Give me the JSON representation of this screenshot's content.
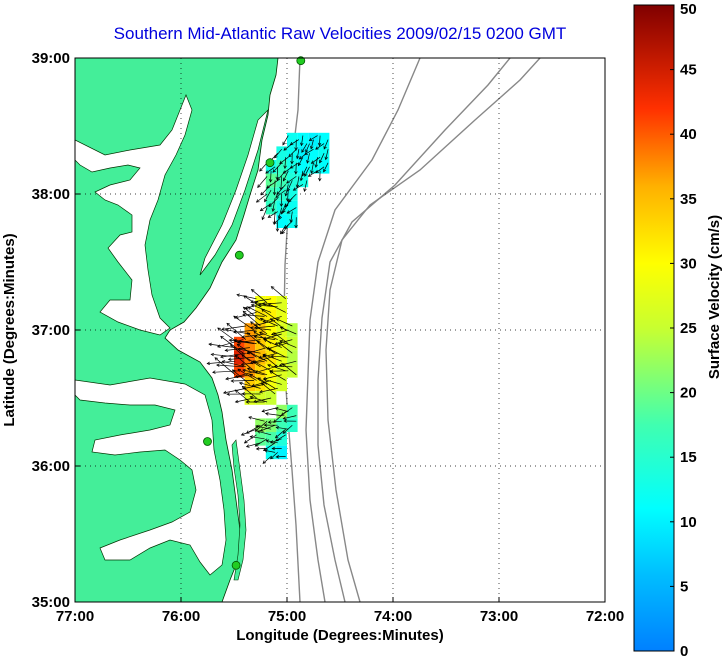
{
  "chart_data": {
    "type": "heatmap",
    "title": "Southern Mid-Atlantic Raw Velocities 2009/02/15 0200 GMT",
    "xlabel": "Longitude (Degrees:Minutes)",
    "ylabel": "Latitude (Degrees:Minutes)",
    "xlim": [
      -77,
      -72
    ],
    "ylim": [
      35,
      39
    ],
    "xticks": [
      {
        "value": -77,
        "label": "77:00"
      },
      {
        "value": -76,
        "label": "76:00"
      },
      {
        "value": -75,
        "label": "75:00"
      },
      {
        "value": -74,
        "label": "74:00"
      },
      {
        "value": -73,
        "label": "73:00"
      },
      {
        "value": -72,
        "label": "72:00"
      }
    ],
    "yticks": [
      {
        "value": 35,
        "label": "35:00"
      },
      {
        "value": 36,
        "label": "36:00"
      },
      {
        "value": 37,
        "label": "37:00"
      },
      {
        "value": 38,
        "label": "38:00"
      },
      {
        "value": 39,
        "label": "39:00"
      }
    ],
    "grid": true,
    "colorbar": {
      "label": "Surface Velocity (cm/s)",
      "range": [
        0,
        50
      ],
      "ticks": [
        "0",
        "5",
        "10",
        "15",
        "20",
        "25",
        "30",
        "35",
        "40",
        "45",
        "50"
      ],
      "colormap": "jet"
    },
    "colors": {
      "land": "#44ee99",
      "title": "#0000dd",
      "bathymetry": "#888888"
    },
    "stations": [
      {
        "lon": -74.87,
        "lat": 38.98
      },
      {
        "lon": -75.16,
        "lat": 38.23
      },
      {
        "lon": -75.45,
        "lat": 37.55
      },
      {
        "lon": -75.75,
        "lat": 36.18
      },
      {
        "lon": -75.48,
        "lat": 35.27
      }
    ],
    "regions": [
      {
        "name": "north",
        "cells": [
          {
            "lon": -74.95,
            "lat": 38.4,
            "speed": 12
          },
          {
            "lon": -74.85,
            "lat": 38.4,
            "speed": 11
          },
          {
            "lon": -74.75,
            "lat": 38.4,
            "speed": 10
          },
          {
            "lon": -74.65,
            "lat": 38.4,
            "speed": 11
          },
          {
            "lon": -75.05,
            "lat": 38.3,
            "speed": 13
          },
          {
            "lon": -74.95,
            "lat": 38.3,
            "speed": 12
          },
          {
            "lon": -74.85,
            "lat": 38.3,
            "speed": 10
          },
          {
            "lon": -74.75,
            "lat": 38.3,
            "speed": 11
          },
          {
            "lon": -74.65,
            "lat": 38.3,
            "speed": 12
          },
          {
            "lon": -75.15,
            "lat": 38.2,
            "speed": 13
          },
          {
            "lon": -75.05,
            "lat": 38.2,
            "speed": 16
          },
          {
            "lon": -74.95,
            "lat": 38.2,
            "speed": 13
          },
          {
            "lon": -74.85,
            "lat": 38.2,
            "speed": 11
          },
          {
            "lon": -74.75,
            "lat": 38.2,
            "speed": 12
          },
          {
            "lon": -74.65,
            "lat": 38.2,
            "speed": 11
          },
          {
            "lon": -75.15,
            "lat": 38.1,
            "speed": 19
          },
          {
            "lon": -75.05,
            "lat": 38.1,
            "speed": 17
          },
          {
            "lon": -74.95,
            "lat": 38.1,
            "speed": 14
          },
          {
            "lon": -74.85,
            "lat": 38.1,
            "speed": 13
          },
          {
            "lon": -75.15,
            "lat": 38.0,
            "speed": 17
          },
          {
            "lon": -75.05,
            "lat": 38.0,
            "speed": 15
          },
          {
            "lon": -74.95,
            "lat": 38.0,
            "speed": 13
          },
          {
            "lon": -75.15,
            "lat": 37.9,
            "speed": 16
          },
          {
            "lon": -75.05,
            "lat": 37.9,
            "speed": 13
          },
          {
            "lon": -74.95,
            "lat": 37.9,
            "speed": 12
          },
          {
            "lon": -75.05,
            "lat": 37.8,
            "speed": 11
          },
          {
            "lon": -74.95,
            "lat": 37.8,
            "speed": 12
          }
        ]
      },
      {
        "name": "middle",
        "cells": [
          {
            "lon": -75.25,
            "lat": 37.2,
            "speed": 29
          },
          {
            "lon": -75.15,
            "lat": 37.2,
            "speed": 30
          },
          {
            "lon": -75.05,
            "lat": 37.2,
            "speed": 27
          },
          {
            "lon": -75.25,
            "lat": 37.1,
            "speed": 32
          },
          {
            "lon": -75.15,
            "lat": 37.1,
            "speed": 31
          },
          {
            "lon": -75.05,
            "lat": 37.1,
            "speed": 28
          },
          {
            "lon": -75.35,
            "lat": 37.0,
            "speed": 37
          },
          {
            "lon": -75.25,
            "lat": 37.0,
            "speed": 34
          },
          {
            "lon": -75.15,
            "lat": 37.0,
            "speed": 30
          },
          {
            "lon": -75.05,
            "lat": 37.0,
            "speed": 27
          },
          {
            "lon": -74.95,
            "lat": 37.0,
            "speed": 24
          },
          {
            "lon": -75.45,
            "lat": 36.9,
            "speed": 41
          },
          {
            "lon": -75.35,
            "lat": 36.9,
            "speed": 38
          },
          {
            "lon": -75.25,
            "lat": 36.9,
            "speed": 34
          },
          {
            "lon": -75.15,
            "lat": 36.9,
            "speed": 31
          },
          {
            "lon": -75.05,
            "lat": 36.9,
            "speed": 28
          },
          {
            "lon": -74.95,
            "lat": 36.9,
            "speed": 25
          },
          {
            "lon": -75.45,
            "lat": 36.8,
            "speed": 44
          },
          {
            "lon": -75.35,
            "lat": 36.8,
            "speed": 39
          },
          {
            "lon": -75.25,
            "lat": 36.8,
            "speed": 35
          },
          {
            "lon": -75.15,
            "lat": 36.8,
            "speed": 32
          },
          {
            "lon": -75.05,
            "lat": 36.8,
            "speed": 28
          },
          {
            "lon": -74.95,
            "lat": 36.8,
            "speed": 24
          },
          {
            "lon": -75.45,
            "lat": 36.7,
            "speed": 41
          },
          {
            "lon": -75.35,
            "lat": 36.7,
            "speed": 37
          },
          {
            "lon": -75.25,
            "lat": 36.7,
            "speed": 33
          },
          {
            "lon": -75.15,
            "lat": 36.7,
            "speed": 30
          },
          {
            "lon": -75.05,
            "lat": 36.7,
            "speed": 27
          },
          {
            "lon": -74.95,
            "lat": 36.7,
            "speed": 25
          },
          {
            "lon": -75.35,
            "lat": 36.6,
            "speed": 34
          },
          {
            "lon": -75.25,
            "lat": 36.6,
            "speed": 32
          },
          {
            "lon": -75.15,
            "lat": 36.6,
            "speed": 29
          },
          {
            "lon": -75.05,
            "lat": 36.6,
            "speed": 26
          },
          {
            "lon": -75.35,
            "lat": 36.5,
            "speed": 27
          },
          {
            "lon": -75.25,
            "lat": 36.5,
            "speed": 26
          },
          {
            "lon": -75.15,
            "lat": 36.5,
            "speed": 25
          }
        ]
      },
      {
        "name": "south",
        "cells": [
          {
            "lon": -75.05,
            "lat": 36.4,
            "speed": 22
          },
          {
            "lon": -74.95,
            "lat": 36.4,
            "speed": 17
          },
          {
            "lon": -75.25,
            "lat": 36.3,
            "speed": 22
          },
          {
            "lon": -75.15,
            "lat": 36.3,
            "speed": 21
          },
          {
            "lon": -75.05,
            "lat": 36.3,
            "speed": 17
          },
          {
            "lon": -74.95,
            "lat": 36.3,
            "speed": 15
          },
          {
            "lon": -75.25,
            "lat": 36.2,
            "speed": 19
          },
          {
            "lon": -75.15,
            "lat": 36.2,
            "speed": 18
          },
          {
            "lon": -75.05,
            "lat": 36.2,
            "speed": 14
          },
          {
            "lon": -75.15,
            "lat": 36.1,
            "speed": 12
          },
          {
            "lon": -75.05,
            "lat": 36.1,
            "speed": 10
          }
        ]
      }
    ]
  }
}
